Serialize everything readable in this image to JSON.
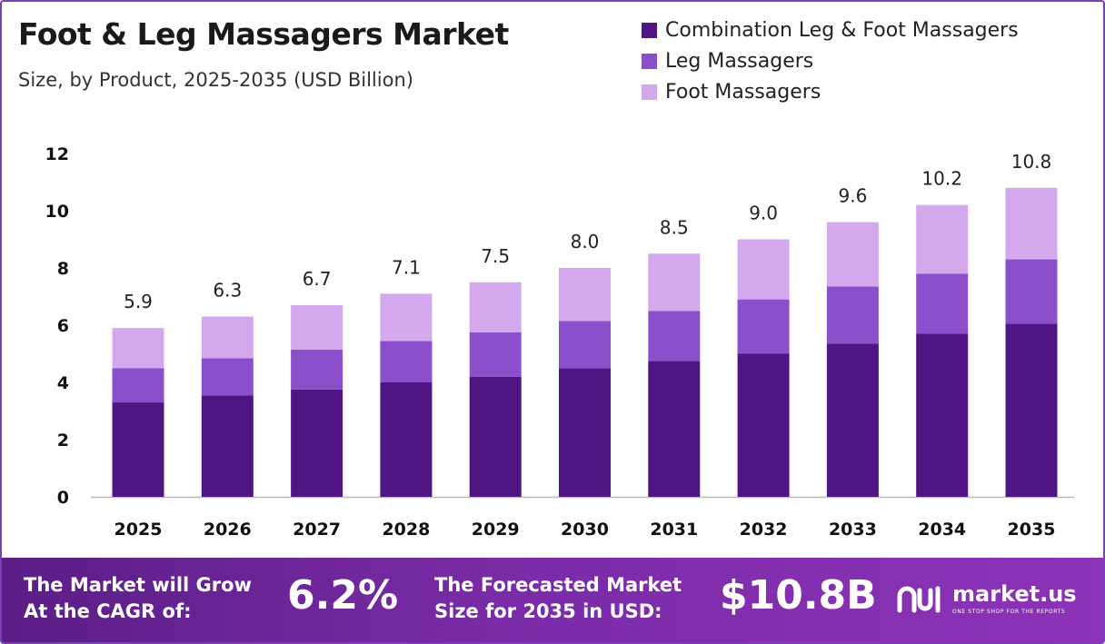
{
  "header": {
    "title": "Foot & Leg Massagers Market",
    "subtitle": "Size, by Product, 2025-2035 (USD Billion)"
  },
  "colors": {
    "combination": "#4f1582",
    "leg": "#8b4fcc",
    "foot": "#d3a8ec",
    "footer_start": "#5b1e86",
    "footer_end": "#8c33b8",
    "axis_line": "#bbbbbb"
  },
  "chart_data": {
    "type": "bar",
    "stacked": true,
    "categories": [
      "2025",
      "2026",
      "2027",
      "2028",
      "2029",
      "2030",
      "2031",
      "2032",
      "2033",
      "2034",
      "2035"
    ],
    "series": [
      {
        "name": "Combination Leg & Foot Massagers",
        "values": [
          3.3,
          3.55,
          3.75,
          4.0,
          4.2,
          4.5,
          4.75,
          5.0,
          5.35,
          5.7,
          6.05
        ]
      },
      {
        "name": "Leg Massagers",
        "values": [
          1.2,
          1.3,
          1.4,
          1.45,
          1.55,
          1.65,
          1.75,
          1.9,
          2.0,
          2.1,
          2.25
        ]
      },
      {
        "name": "Foot Massagers",
        "values": [
          1.4,
          1.45,
          1.55,
          1.65,
          1.75,
          1.85,
          2.0,
          2.1,
          2.25,
          2.4,
          2.5
        ]
      }
    ],
    "totals": [
      "5.9",
      "6.3",
      "6.7",
      "7.1",
      "7.5",
      "8.0",
      "8.5",
      "9.0",
      "9.6",
      "10.2",
      "10.8"
    ],
    "yticks": [
      "0",
      "2",
      "4",
      "6",
      "8",
      "10",
      "12"
    ],
    "ylim": [
      0,
      12
    ],
    "legend_position": "top-right",
    "grid": false
  },
  "footer": {
    "cagr_text_line1": "The Market will Grow",
    "cagr_text_line2": "At the CAGR of:",
    "cagr_value": "6.2%",
    "forecast_text_line1": "The Forecasted Market",
    "forecast_text_line2": "Size for 2035 in USD:",
    "forecast_value": "$10.8B",
    "brand_name": "market.us",
    "brand_tagline": "ONE STOP SHOP FOR THE REPORTS",
    "logo_icon": "market-us-logo-icon"
  }
}
